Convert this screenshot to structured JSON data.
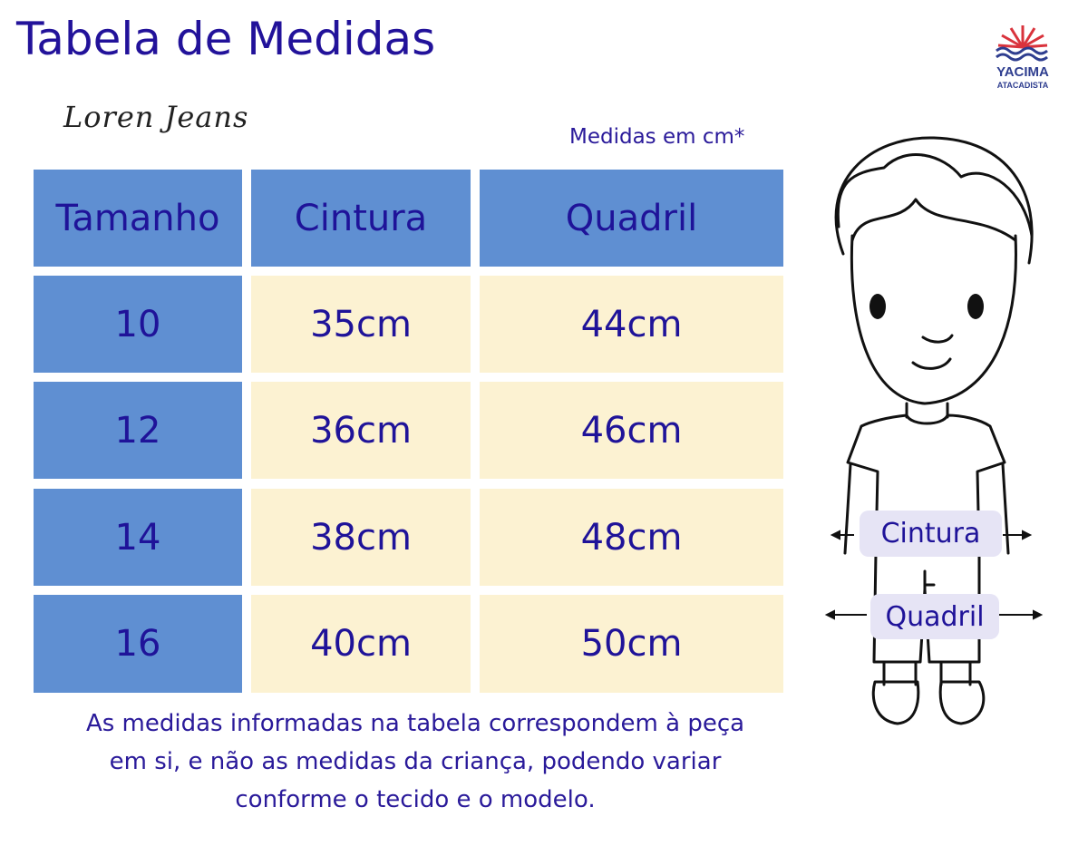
{
  "header": {
    "title": "Tabela de Medidas",
    "brand": "Loren Jeans",
    "logo_name": "YACIMA",
    "logo_sub": "ATACADISTA",
    "unit_note": "Medidas em cm*"
  },
  "table": {
    "columns": [
      "Tamanho",
      "Cintura",
      "Quadril"
    ],
    "rows": [
      [
        "10",
        "35cm",
        "44cm"
      ],
      [
        "12",
        "36cm",
        "46cm"
      ],
      [
        "14",
        "38cm",
        "48cm"
      ],
      [
        "16",
        "40cm",
        "50cm"
      ]
    ]
  },
  "footnote": [
    "As medidas informadas na tabela correspondem à peça",
    "em si, e não as medidas da criança, podendo variar",
    "conforme o tecido e o modelo."
  ],
  "figure": {
    "waist_label": "Cintura",
    "hip_label": "Quadril"
  }
}
